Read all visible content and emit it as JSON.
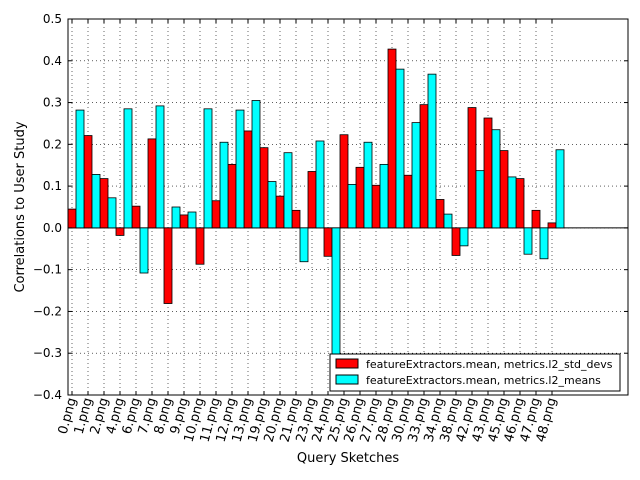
{
  "chart_data": {
    "type": "bar",
    "title": "",
    "xlabel": "Query Sketches",
    "ylabel": "Correlations to User Study",
    "ylim": [
      -0.4,
      0.5
    ],
    "yticks": [
      -0.4,
      -0.3,
      -0.2,
      -0.1,
      0.0,
      0.1,
      0.2,
      0.3,
      0.4,
      0.5
    ],
    "ytick_labels": [
      "−0.4",
      "−0.3",
      "−0.2",
      "−0.1",
      "0.0",
      "0.1",
      "0.2",
      "0.3",
      "0.4",
      "0.5"
    ],
    "grid": true,
    "legend_position": "bottom-right",
    "categories": [
      "0.png",
      "1.png",
      "2.png",
      "4.png",
      "6.png",
      "7.png",
      "8.png",
      "9.png",
      "10.png",
      "11.png",
      "12.png",
      "13.png",
      "19.png",
      "20.png",
      "21.png",
      "23.png",
      "24.png",
      "25.png",
      "26.png",
      "27.png",
      "28.png",
      "30.png",
      "33.png",
      "34.png",
      "38.png",
      "42.png",
      "43.png",
      "45.png",
      "46.png",
      "47.png",
      "48.png"
    ],
    "series": [
      {
        "name": "featureExtractors.mean, metrics.l2_std_devs",
        "color": "#ff0000",
        "values": [
          0.045,
          0.221,
          0.118,
          -0.018,
          0.052,
          0.213,
          -0.181,
          0.031,
          -0.087,
          0.065,
          0.152,
          0.232,
          0.192,
          0.076,
          0.042,
          0.135,
          -0.068,
          0.223,
          0.145,
          0.102,
          0.428,
          0.126,
          0.295,
          0.068,
          -0.066,
          0.288,
          0.263,
          0.185,
          0.118,
          0.042,
          0.012
        ]
      },
      {
        "name": "featureExtractors.mean, metrics.l2_means",
        "color": "#00ffff",
        "values": [
          0.282,
          0.128,
          0.072,
          0.285,
          -0.108,
          0.292,
          0.05,
          0.038,
          0.285,
          0.205,
          0.282,
          0.305,
          0.111,
          0.18,
          -0.081,
          0.208,
          -0.305,
          0.104,
          0.205,
          0.152,
          0.38,
          0.252,
          0.368,
          0.033,
          -0.043,
          0.137,
          0.235,
          0.122,
          -0.063,
          -0.074,
          0.187
        ]
      }
    ]
  }
}
